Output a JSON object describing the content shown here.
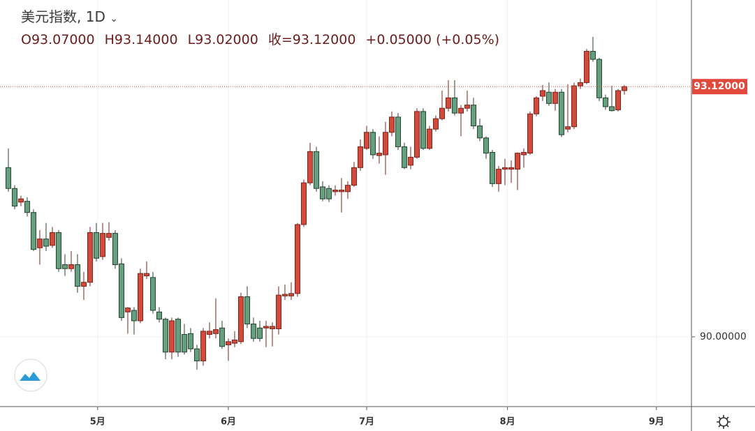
{
  "chart_data": {
    "type": "candlestick",
    "title": "美元指数, 1D",
    "header": {
      "open": "O93.07000",
      "high": "H93.14000",
      "low": "L93.02000",
      "close": "收=93.12000",
      "change": "+0.05000 (+0.05%)"
    },
    "up_color": "#d24a3b",
    "down_color": "#649f7e",
    "xlim": [
      -1.33,
      108.67
    ],
    "xticks": [
      {
        "value": 14.2,
        "label": "5月"
      },
      {
        "value": 35,
        "label": "6月"
      },
      {
        "value": 57,
        "label": "7月"
      },
      {
        "value": 79.4,
        "label": "8月"
      },
      {
        "value": 103.1,
        "label": "9月"
      }
    ],
    "ylim": [
      89.13,
      94.2
    ],
    "yticks": [
      {
        "value": 90,
        "label": "90.00000"
      }
    ],
    "last_price": {
      "value": 93.12,
      "label": "93.12000"
    },
    "grid": true,
    "open": [
      92.11,
      91.85,
      91.68,
      91.69,
      91.55,
      91.11,
      91.22,
      91.14,
      91.3,
      90.9,
      90.85,
      90.9,
      90.63,
      90.68,
      91.3,
      91.0,
      91.24,
      91.29,
      90.91,
      90.31,
      90.33,
      90.2,
      90.76,
      90.74,
      90.31,
      90.22,
      89.81,
      90.22,
      90.03,
      90.04,
      89.85,
      89.7,
      90.03,
      90.04,
      90.11,
      89.9,
      89.92,
      89.94,
      90.5,
      90.16,
      90.11,
      90.11,
      90.1,
      90.1,
      90.51,
      90.51,
      90.54,
      91.4,
      91.92,
      92.31,
      91.87,
      91.85,
      91.81,
      91.81,
      91.81,
      91.89,
      92.11,
      92.35,
      92.55,
      92.26,
      92.27,
      92.55,
      92.74,
      92.37,
      92.14,
      92.24,
      92.81,
      92.35,
      92.59,
      92.72,
      92.85,
      92.98,
      92.79,
      92.85,
      92.89,
      92.63,
      92.48,
      92.3,
      91.91,
      92.09,
      92.09,
      92.09,
      92.27,
      92.29,
      92.78,
      93.0,
      93.05,
      92.91,
      93.05,
      92.59,
      92.62,
      93.13,
      93.17,
      93.56,
      93.46,
      92.98,
      92.87,
      92.83,
      93.07
    ],
    "high": [
      92.35,
      91.89,
      91.76,
      91.74,
      91.59,
      91.33,
      91.42,
      91.37,
      91.33,
      91.03,
      91.07,
      91.03,
      90.81,
      91.37,
      91.42,
      91.42,
      91.43,
      91.33,
      90.98,
      90.37,
      90.37,
      90.85,
      90.94,
      90.81,
      90.37,
      90.24,
      90.24,
      90.24,
      90.16,
      90.11,
      89.9,
      90.11,
      90.18,
      90.48,
      90.2,
      89.98,
      90.07,
      90.55,
      90.63,
      90.24,
      90.2,
      90.2,
      90.18,
      90.63,
      90.65,
      90.68,
      91.42,
      91.96,
      92.42,
      92.37,
      91.94,
      91.89,
      91.89,
      91.98,
      91.94,
      92.18,
      92.46,
      92.63,
      92.59,
      92.5,
      92.68,
      92.81,
      92.79,
      92.42,
      92.37,
      92.85,
      92.85,
      92.63,
      92.76,
      93.07,
      93.2,
      93.2,
      92.89,
      93.07,
      92.98,
      92.72,
      92.5,
      92.33,
      92.13,
      92.22,
      92.2,
      92.3,
      92.35,
      92.81,
      93.0,
      93.14,
      93.17,
      93.09,
      93.09,
      93.15,
      93.17,
      93.22,
      93.59,
      93.74,
      93.48,
      93.02,
      93.13,
      93.09,
      93.14
    ],
    "low": [
      91.81,
      91.59,
      91.63,
      91.5,
      91.07,
      90.9,
      91.07,
      91.11,
      90.81,
      90.76,
      90.81,
      90.55,
      90.46,
      90.63,
      90.94,
      90.96,
      91.2,
      90.85,
      90.2,
      90.04,
      90.03,
      90.17,
      90.72,
      90.29,
      90.18,
      89.72,
      89.72,
      89.75,
      89.78,
      89.81,
      89.59,
      89.64,
      89.98,
      89.98,
      89.85,
      89.7,
      89.87,
      89.91,
      90.11,
      89.94,
      89.94,
      89.87,
      89.88,
      90.03,
      90.46,
      90.46,
      90.5,
      91.37,
      91.89,
      91.81,
      91.69,
      91.68,
      91.76,
      91.55,
      91.72,
      91.87,
      92.07,
      92.33,
      92.22,
      92.16,
      92.02,
      92.5,
      92.33,
      92.09,
      92.09,
      92.22,
      92.33,
      92.33,
      92.56,
      92.7,
      92.81,
      92.76,
      92.5,
      92.81,
      92.59,
      92.44,
      92.22,
      91.87,
      91.81,
      91.89,
      91.92,
      91.83,
      92.11,
      92.27,
      92.75,
      92.94,
      92.88,
      92.82,
      92.49,
      92.55,
      92.59,
      93.09,
      93.15,
      93.43,
      92.94,
      92.83,
      92.81,
      92.81,
      93.02
    ],
    "close": [
      91.85,
      91.63,
      91.72,
      91.55,
      91.09,
      91.22,
      91.13,
      91.3,
      90.85,
      90.85,
      90.9,
      90.63,
      90.68,
      91.3,
      90.98,
      91.29,
      91.29,
      90.9,
      90.24,
      90.36,
      90.2,
      90.79,
      90.79,
      90.33,
      90.22,
      89.81,
      90.2,
      89.81,
      89.81,
      89.85,
      89.7,
      90.07,
      90.07,
      90.09,
      89.88,
      89.94,
      89.96,
      90.5,
      90.16,
      89.98,
      89.98,
      90.13,
      90.13,
      90.52,
      90.53,
      90.54,
      91.4,
      91.92,
      92.31,
      91.85,
      91.72,
      91.72,
      91.83,
      91.83,
      91.89,
      92.11,
      92.37,
      92.55,
      92.27,
      92.29,
      92.55,
      92.74,
      92.37,
      92.11,
      92.24,
      92.81,
      92.35,
      92.59,
      92.72,
      92.85,
      92.98,
      92.79,
      92.85,
      92.89,
      92.63,
      92.48,
      92.29,
      91.91,
      92.09,
      92.11,
      92.11,
      92.29,
      92.3,
      92.78,
      92.98,
      93.07,
      92.91,
      93.05,
      92.52,
      92.62,
      93.13,
      93.17,
      93.56,
      93.46,
      92.98,
      92.87,
      92.82,
      93.07,
      93.12
    ]
  }
}
